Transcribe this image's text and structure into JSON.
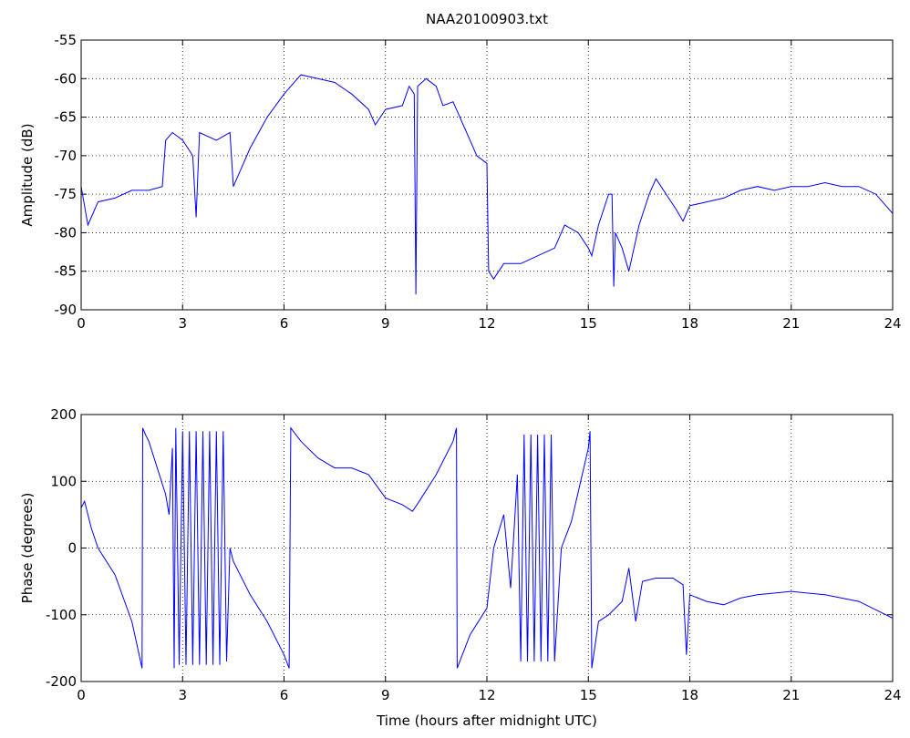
{
  "chart_data": [
    {
      "type": "line",
      "title": "NAA20100903.txt",
      "ylabel": "Amplitude (dB)",
      "color": "#0000ff",
      "grid": true,
      "xlim": [
        0,
        24
      ],
      "xticks": [
        0,
        3,
        6,
        9,
        12,
        15,
        18,
        21,
        24
      ],
      "ylim": [
        -90,
        -55
      ],
      "yticks": [
        -90,
        -85,
        -80,
        -75,
        -70,
        -65,
        -60,
        -55
      ],
      "x": [
        0,
        0.2,
        0.5,
        1.0,
        1.5,
        2.0,
        2.4,
        2.5,
        2.7,
        3.0,
        3.3,
        3.4,
        3.5,
        4.0,
        4.4,
        4.5,
        4.7,
        5.0,
        5.5,
        6.0,
        6.5,
        7.0,
        7.5,
        8.0,
        8.5,
        8.7,
        9.0,
        9.5,
        9.7,
        9.85,
        9.9,
        9.95,
        10.2,
        10.5,
        10.7,
        11.0,
        11.3,
        11.5,
        11.7,
        12.0,
        12.05,
        12.2,
        12.5,
        13.0,
        13.5,
        14.0,
        14.3,
        14.7,
        15.0,
        15.1,
        15.3,
        15.6,
        15.7,
        15.75,
        15.8,
        16.0,
        16.2,
        16.5,
        16.8,
        17.0,
        17.3,
        17.6,
        17.8,
        18.0,
        18.5,
        19.0,
        19.5,
        20.0,
        20.5,
        21.0,
        21.5,
        22.0,
        22.5,
        23.0,
        23.5,
        24.0
      ],
      "values": [
        -74,
        -79,
        -76,
        -75.5,
        -74.5,
        -74.5,
        -74,
        -68,
        -67,
        -68,
        -70,
        -78,
        -67,
        -68,
        -67,
        -74,
        -72,
        -69,
        -65,
        -62,
        -59.5,
        -60,
        -60.5,
        -62,
        -64,
        -66,
        -64,
        -63.5,
        -61,
        -62,
        -88,
        -61,
        -60,
        -61,
        -63.5,
        -63,
        -66,
        -68,
        -70,
        -71,
        -85,
        -86,
        -84,
        -84,
        -83,
        -82,
        -79,
        -80,
        -82,
        -83,
        -79,
        -75,
        -75,
        -87,
        -80,
        -82,
        -85,
        -79,
        -75,
        -73,
        -75,
        -77,
        -78.5,
        -76.5,
        -76,
        -75.5,
        -74.5,
        -74,
        -74.5,
        -74,
        -74,
        -73.5,
        -74,
        -74,
        -75,
        -77.5
      ]
    },
    {
      "type": "line",
      "ylabel": "Phase (degrees)",
      "xlabel": "Time (hours after midnight UTC)",
      "color": "#0000ff",
      "grid": true,
      "xlim": [
        0,
        24
      ],
      "xticks": [
        0,
        3,
        6,
        9,
        12,
        15,
        18,
        21,
        24
      ],
      "ylim": [
        -200,
        200
      ],
      "yticks": [
        -200,
        -100,
        0,
        100,
        200
      ],
      "x": [
        0,
        0.1,
        0.3,
        0.5,
        1.0,
        1.5,
        1.8,
        1.82,
        1.9,
        2.0,
        2.5,
        2.6,
        2.7,
        2.75,
        2.8,
        2.9,
        3.0,
        3.1,
        3.2,
        3.3,
        3.4,
        3.5,
        3.6,
        3.7,
        3.8,
        3.9,
        4.0,
        4.1,
        4.2,
        4.3,
        4.4,
        4.5,
        5.0,
        5.5,
        6.0,
        6.15,
        6.2,
        6.5,
        7.0,
        7.5,
        8.0,
        8.5,
        9.0,
        9.5,
        9.8,
        10.0,
        10.5,
        11.0,
        11.1,
        11.12,
        11.5,
        12.0,
        12.2,
        12.5,
        12.7,
        12.9,
        13.0,
        13.1,
        13.2,
        13.3,
        13.4,
        13.5,
        13.6,
        13.7,
        13.8,
        13.9,
        14.0,
        14.2,
        14.5,
        15.0,
        15.05,
        15.1,
        15.3,
        15.6,
        16.0,
        16.2,
        16.4,
        16.6,
        17.0,
        17.5,
        17.8,
        17.9,
        18.0,
        18.5,
        19.0,
        19.5,
        20.0,
        21.0,
        22.0,
        23.0,
        24.0
      ],
      "values": [
        60,
        70,
        30,
        0,
        -40,
        -110,
        -180,
        180,
        170,
        160,
        80,
        50,
        150,
        -180,
        180,
        -175,
        175,
        -175,
        175,
        -175,
        175,
        -175,
        175,
        -175,
        175,
        -175,
        175,
        -175,
        175,
        -170,
        0,
        -20,
        -70,
        -110,
        -160,
        -180,
        180,
        160,
        135,
        120,
        120,
        110,
        75,
        65,
        55,
        70,
        110,
        160,
        180,
        -180,
        -130,
        -90,
        0,
        50,
        -60,
        110,
        -170,
        170,
        -170,
        170,
        -170,
        170,
        -170,
        170,
        -170,
        170,
        -170,
        0,
        40,
        150,
        175,
        -180,
        -110,
        -100,
        -80,
        -30,
        -110,
        -50,
        -45,
        -45,
        -55,
        -160,
        -70,
        -80,
        -85,
        -75,
        -70,
        -65,
        -70,
        -80,
        -105
      ]
    }
  ]
}
